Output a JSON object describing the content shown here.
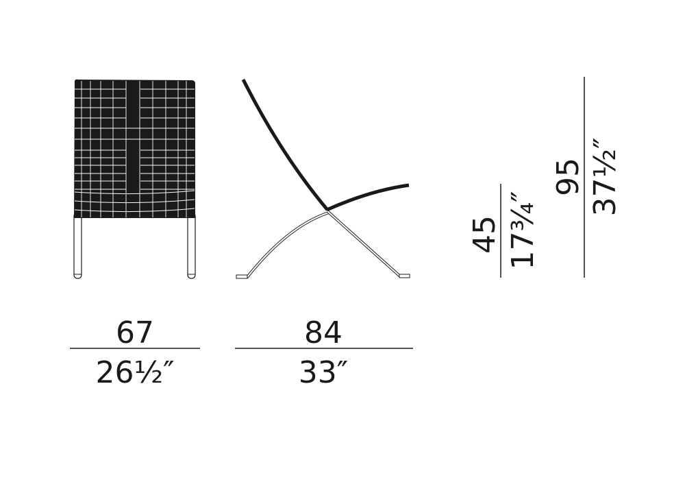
{
  "colors": {
    "ink": "#1a1a1a",
    "background": "#ffffff"
  },
  "dimensions": {
    "width": {
      "cm": "67",
      "inches": "26½″"
    },
    "depth": {
      "cm": "84",
      "inches": "33″"
    },
    "seat_height": {
      "cm": "45",
      "inches": "17¾″"
    },
    "height": {
      "cm": "95",
      "inches": "37½″"
    }
  }
}
